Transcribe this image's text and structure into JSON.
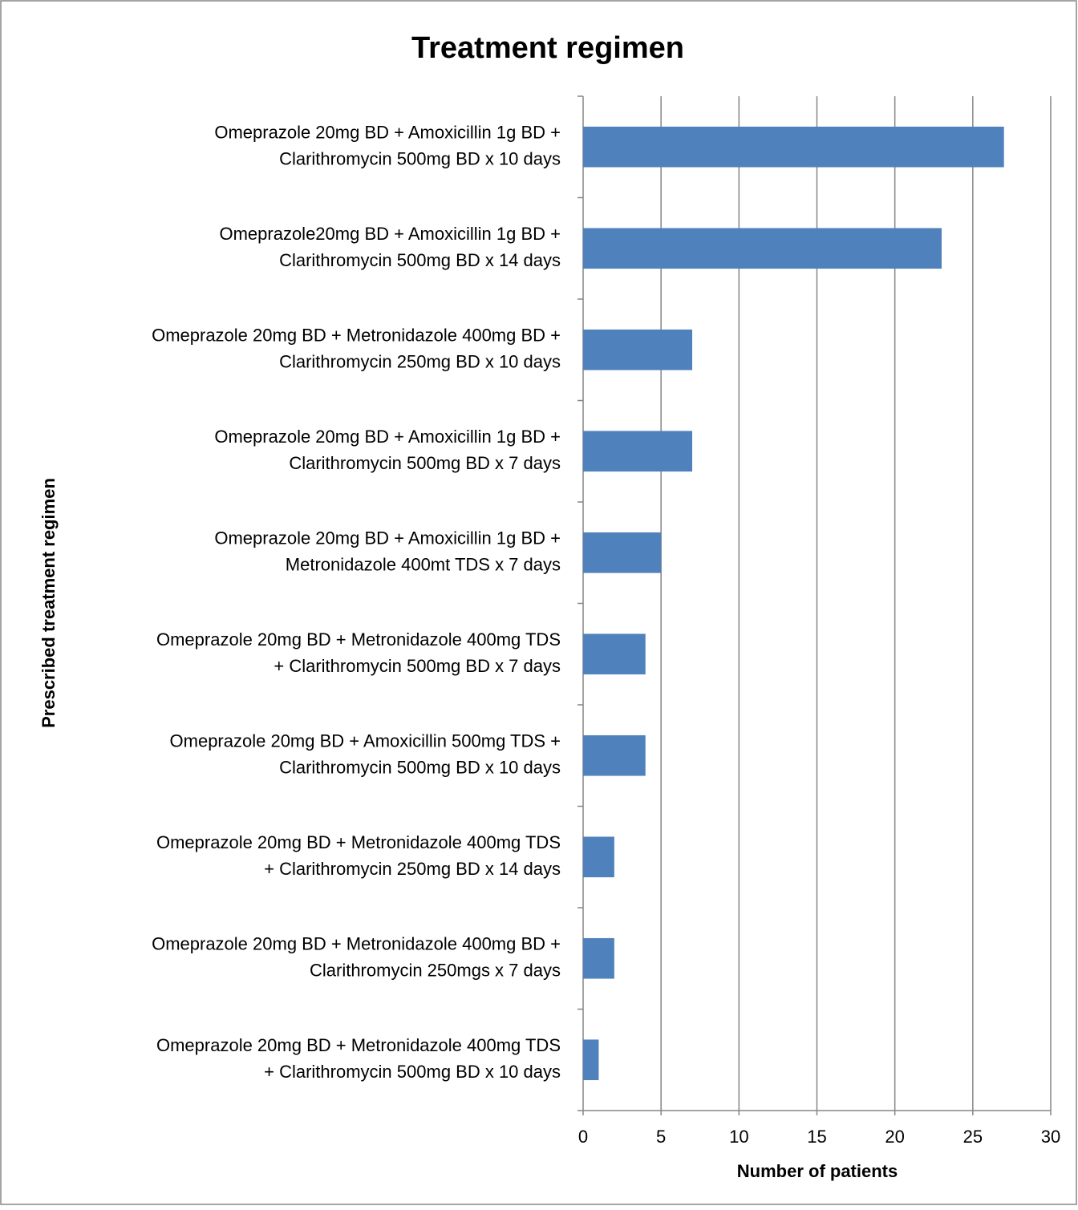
{
  "chart_data": {
    "type": "barh",
    "title": "Treatment regimen",
    "x_label": "Number of patients",
    "y_label": "Prescribed treatment regimen",
    "categories": [
      [
        "Omeprazole 20mg BD + Amoxicillin 1g BD +",
        "Clarithromycin 500mg BD x 10 days"
      ],
      [
        "Omeprazole20mg BD + Amoxicillin 1g BD +",
        "Clarithromycin 500mg BD x 14 days"
      ],
      [
        "Omeprazole 20mg BD + Metronidazole 400mg BD +",
        "Clarithromycin 250mg BD x 10 days"
      ],
      [
        "Omeprazole 20mg BD + Amoxicillin 1g BD +",
        "Clarithromycin 500mg BD x 7 days"
      ],
      [
        "Omeprazole 20mg BD + Amoxicillin 1g BD +",
        "Metronidazole 400mt TDS x 7 days"
      ],
      [
        "Omeprazole 20mg BD + Metronidazole 400mg TDS",
        "+ Clarithromycin 500mg BD x 7 days"
      ],
      [
        "Omeprazole 20mg BD + Amoxicillin 500mg TDS +",
        "Clarithromycin 500mg BD x 10 days"
      ],
      [
        "Omeprazole 20mg BD + Metronidazole 400mg TDS",
        "+ Clarithromycin 250mg BD x 14 days"
      ],
      [
        "Omeprazole 20mg BD + Metronidazole 400mg BD +",
        "Clarithromycin 250mgs x 7 days"
      ],
      [
        "Omeprazole 20mg BD + Metronidazole 400mg TDS",
        "+ Clarithromycin 500mg BD x 10 days"
      ]
    ],
    "values": [
      27,
      23,
      7,
      7,
      5,
      4,
      4,
      2,
      2,
      1
    ],
    "color": "#4f81bd",
    "xlim": [
      0,
      30
    ],
    "xticks": [
      0,
      5,
      10,
      15,
      20,
      25,
      30
    ],
    "grid": true
  }
}
